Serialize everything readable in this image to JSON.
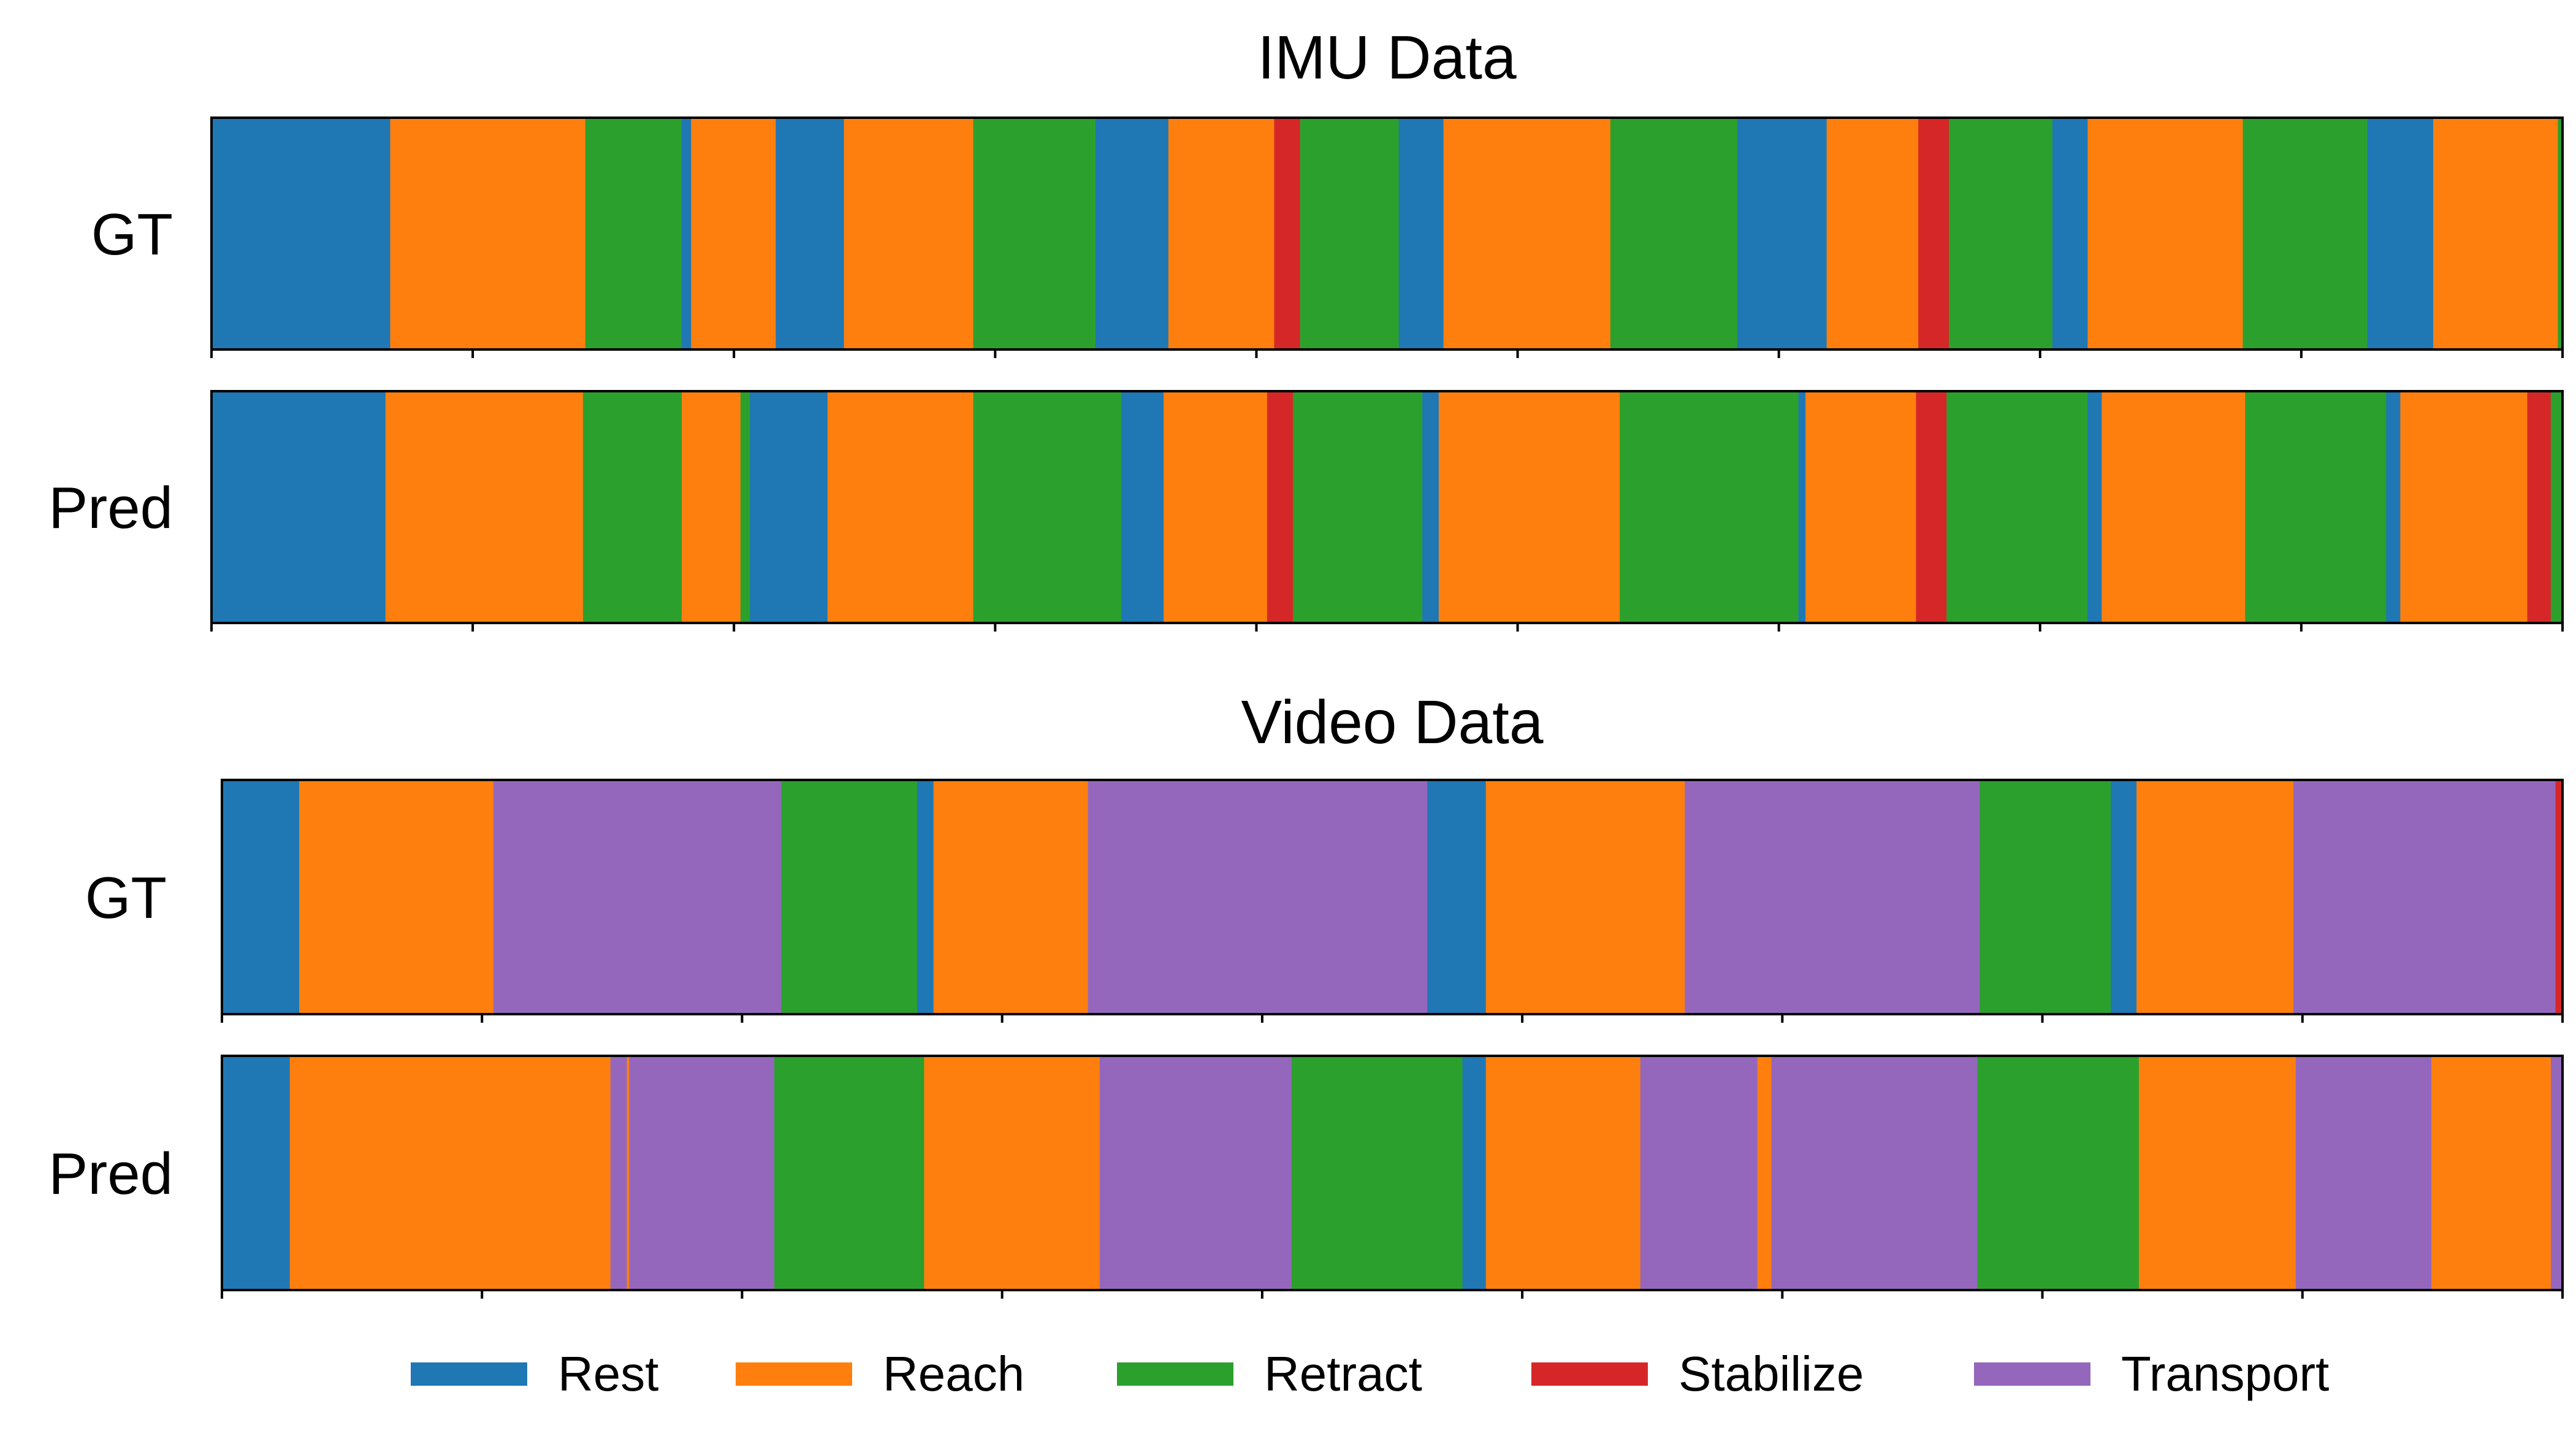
{
  "chart_data": [
    {
      "type": "segment-timeline",
      "title": "IMU Data",
      "x_range": [
        0,
        1000
      ],
      "rows": [
        {
          "label": "GT",
          "segments": [
            {
              "class": "Rest",
              "start": 0,
              "end": 76
            },
            {
              "class": "Reach",
              "start": 76,
              "end": 159
            },
            {
              "class": "Retract",
              "start": 159,
              "end": 200
            },
            {
              "class": "Rest",
              "start": 200,
              "end": 204
            },
            {
              "class": "Reach",
              "start": 204,
              "end": 240
            },
            {
              "class": "Rest",
              "start": 240,
              "end": 269
            },
            {
              "class": "Reach",
              "start": 269,
              "end": 324
            },
            {
              "class": "Retract",
              "start": 324,
              "end": 376
            },
            {
              "class": "Rest",
              "start": 376,
              "end": 407
            },
            {
              "class": "Reach",
              "start": 407,
              "end": 452
            },
            {
              "class": "Stabilize",
              "start": 452,
              "end": 463
            },
            {
              "class": "Retract",
              "start": 463,
              "end": 505
            },
            {
              "class": "Rest",
              "start": 505,
              "end": 524
            },
            {
              "class": "Reach",
              "start": 524,
              "end": 595
            },
            {
              "class": "Retract",
              "start": 595,
              "end": 649
            },
            {
              "class": "Rest",
              "start": 649,
              "end": 687
            },
            {
              "class": "Reach",
              "start": 687,
              "end": 726
            },
            {
              "class": "Stabilize",
              "start": 726,
              "end": 739
            },
            {
              "class": "Retract",
              "start": 739,
              "end": 783
            },
            {
              "class": "Rest",
              "start": 783,
              "end": 798
            },
            {
              "class": "Reach",
              "start": 798,
              "end": 864
            },
            {
              "class": "Retract",
              "start": 864,
              "end": 917
            },
            {
              "class": "Rest",
              "start": 917,
              "end": 945
            },
            {
              "class": "Reach",
              "start": 945,
              "end": 998
            },
            {
              "class": "Retract",
              "start": 998,
              "end": 1000
            }
          ]
        },
        {
          "label": "Pred",
          "segments": [
            {
              "class": "Rest",
              "start": 0,
              "end": 74
            },
            {
              "class": "Reach",
              "start": 74,
              "end": 158
            },
            {
              "class": "Retract",
              "start": 158,
              "end": 200
            },
            {
              "class": "Reach",
              "start": 200,
              "end": 225
            },
            {
              "class": "Retract",
              "start": 225,
              "end": 229
            },
            {
              "class": "Rest",
              "start": 229,
              "end": 262
            },
            {
              "class": "Reach",
              "start": 262,
              "end": 324
            },
            {
              "class": "Retract",
              "start": 324,
              "end": 387
            },
            {
              "class": "Rest",
              "start": 387,
              "end": 405
            },
            {
              "class": "Reach",
              "start": 405,
              "end": 449
            },
            {
              "class": "Stabilize",
              "start": 449,
              "end": 460
            },
            {
              "class": "Retract",
              "start": 460,
              "end": 515
            },
            {
              "class": "Rest",
              "start": 515,
              "end": 522
            },
            {
              "class": "Reach",
              "start": 522,
              "end": 599
            },
            {
              "class": "Retract",
              "start": 599,
              "end": 675
            },
            {
              "class": "Rest",
              "start": 675,
              "end": 678
            },
            {
              "class": "Reach",
              "start": 678,
              "end": 725
            },
            {
              "class": "Stabilize",
              "start": 725,
              "end": 738
            },
            {
              "class": "Retract",
              "start": 738,
              "end": 798
            },
            {
              "class": "Rest",
              "start": 798,
              "end": 804
            },
            {
              "class": "Reach",
              "start": 804,
              "end": 865
            },
            {
              "class": "Retract",
              "start": 865,
              "end": 925
            },
            {
              "class": "Rest",
              "start": 925,
              "end": 931
            },
            {
              "class": "Reach",
              "start": 931,
              "end": 985
            },
            {
              "class": "Stabilize",
              "start": 985,
              "end": 995
            },
            {
              "class": "Retract",
              "start": 995,
              "end": 1000
            }
          ]
        }
      ]
    },
    {
      "type": "segment-timeline",
      "title": "Video Data",
      "x_range": [
        0,
        1000
      ],
      "rows": [
        {
          "label": "GT",
          "segments": [
            {
              "class": "Rest",
              "start": 0,
              "end": 33
            },
            {
              "class": "Reach",
              "start": 33,
              "end": 116
            },
            {
              "class": "Transport",
              "start": 116,
              "end": 239
            },
            {
              "class": "Retract",
              "start": 239,
              "end": 297
            },
            {
              "class": "Rest",
              "start": 297,
              "end": 304
            },
            {
              "class": "Reach",
              "start": 304,
              "end": 370
            },
            {
              "class": "Transport",
              "start": 370,
              "end": 515
            },
            {
              "class": "Rest",
              "start": 515,
              "end": 540
            },
            {
              "class": "Reach",
              "start": 540,
              "end": 625
            },
            {
              "class": "Transport",
              "start": 625,
              "end": 751
            },
            {
              "class": "Retract",
              "start": 751,
              "end": 807
            },
            {
              "class": "Rest",
              "start": 807,
              "end": 818
            },
            {
              "class": "Reach",
              "start": 818,
              "end": 885
            },
            {
              "class": "Transport",
              "start": 885,
              "end": 997
            },
            {
              "class": "Stabilize",
              "start": 997,
              "end": 1000
            }
          ]
        },
        {
          "label": "Pred",
          "segments": [
            {
              "class": "Rest",
              "start": 0,
              "end": 29
            },
            {
              "class": "Reach",
              "start": 29,
              "end": 166
            },
            {
              "class": "Transport",
              "start": 166,
              "end": 173
            },
            {
              "class": "Reach",
              "start": 173,
              "end": 174
            },
            {
              "class": "Transport",
              "start": 174,
              "end": 236
            },
            {
              "class": "Retract",
              "start": 236,
              "end": 300
            },
            {
              "class": "Reach",
              "start": 300,
              "end": 375
            },
            {
              "class": "Transport",
              "start": 375,
              "end": 457
            },
            {
              "class": "Retract",
              "start": 457,
              "end": 530
            },
            {
              "class": "Rest",
              "start": 530,
              "end": 540
            },
            {
              "class": "Reach",
              "start": 540,
              "end": 606
            },
            {
              "class": "Transport",
              "start": 606,
              "end": 656
            },
            {
              "class": "Reach",
              "start": 656,
              "end": 662
            },
            {
              "class": "Transport",
              "start": 662,
              "end": 750
            },
            {
              "class": "Retract",
              "start": 750,
              "end": 819
            },
            {
              "class": "Reach",
              "start": 819,
              "end": 886
            },
            {
              "class": "Transport",
              "start": 886,
              "end": 944
            },
            {
              "class": "Reach",
              "start": 944,
              "end": 995
            },
            {
              "class": "Transport",
              "start": 995,
              "end": 1000
            }
          ]
        }
      ]
    }
  ],
  "legend": {
    "placement": "bottom-center",
    "items": [
      {
        "label": "Rest",
        "color": "#1f77b4"
      },
      {
        "label": "Reach",
        "color": "#ff7f0e"
      },
      {
        "label": "Retract",
        "color": "#2ca02c"
      },
      {
        "label": "Stabilize",
        "color": "#d62728"
      },
      {
        "label": "Transport",
        "color": "#9467bd"
      }
    ]
  }
}
